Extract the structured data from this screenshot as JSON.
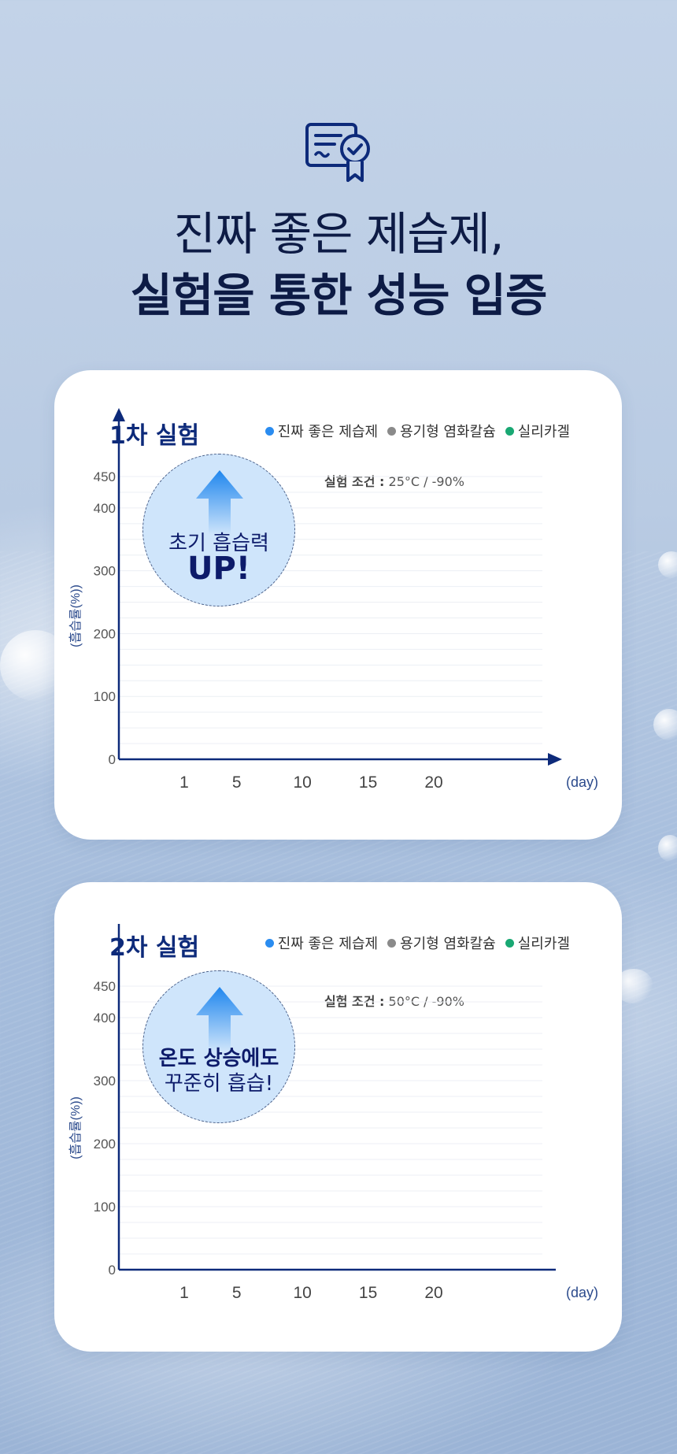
{
  "header": {
    "icon": "certificate-icon",
    "title_line1": "진짜 좋은 제습제,",
    "title_line2": "실험을 통한 성능 입증"
  },
  "colors": {
    "navy": "#0d2a7a",
    "series_main": "#2a8cf0",
    "series_calcium": "#8a8a8a",
    "series_silica": "#19a873"
  },
  "legend": [
    "진짜 좋은 제습제",
    "용기형 염화칼슘",
    "실리카겔"
  ],
  "experiments": [
    {
      "title": "1차 실험",
      "condition_label": "실험 조건 :",
      "condition_value": "25°C / -90%",
      "badge_line1": "초기 흡습력",
      "badge_line2": "UP!"
    },
    {
      "title": "2차 실험",
      "condition_label": "실험 조건 :",
      "condition_value": "50°C / -90%",
      "badge_line1": "온도 상승에도",
      "badge_line2": "꾸준히 흡습!"
    }
  ],
  "chart_data": [
    {
      "type": "line",
      "title": "1차 실험",
      "xlabel": "(day)",
      "ylabel": "(흡습률(%))",
      "x_ticks": [
        "1",
        "5",
        "10",
        "15",
        "20"
      ],
      "y_ticks": [
        "0",
        "100",
        "200",
        "300",
        "400",
        "450"
      ],
      "ylim": [
        0,
        450
      ],
      "grid": true,
      "legend_position": "top-right",
      "series": [
        {
          "name": "진짜 좋은 제습제",
          "values": []
        },
        {
          "name": "용기형 염화칼슘",
          "values": []
        },
        {
          "name": "실리카겔",
          "values": []
        }
      ]
    },
    {
      "type": "line",
      "title": "2차 실험",
      "xlabel": "(day)",
      "ylabel": "(흡습률(%))",
      "x_ticks": [
        "1",
        "5",
        "10",
        "15",
        "20"
      ],
      "y_ticks": [
        "0",
        "100",
        "200",
        "300",
        "400",
        "450"
      ],
      "ylim": [
        0,
        450
      ],
      "grid": true,
      "legend_position": "top-right",
      "series": [
        {
          "name": "진짜 좋은 제습제",
          "values": []
        },
        {
          "name": "용기형 염화칼슘",
          "values": []
        },
        {
          "name": "실리카겔",
          "values": []
        }
      ]
    }
  ]
}
